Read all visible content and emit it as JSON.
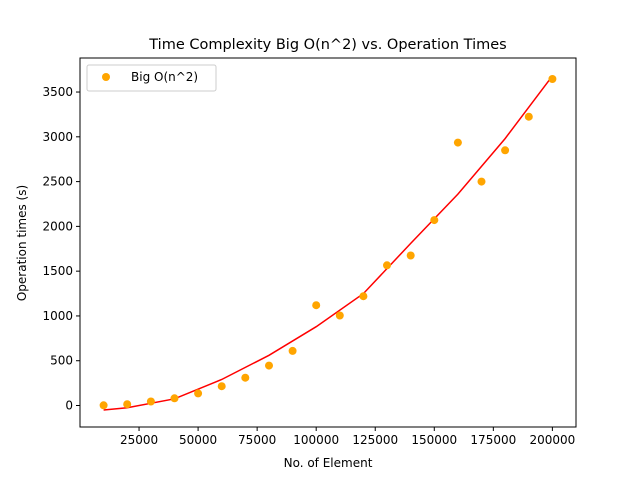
{
  "chart_data": {
    "type": "scatter",
    "title": "Time Complexity Big O(n^2) vs. Operation Times",
    "xlabel": "No. of Element",
    "ylabel": "Operation times (s)",
    "xlim": [
      0,
      210000
    ],
    "ylim": [
      -240,
      3880
    ],
    "x_ticks": [
      25000,
      50000,
      75000,
      100000,
      125000,
      150000,
      175000,
      200000
    ],
    "y_ticks": [
      0,
      500,
      1000,
      1500,
      2000,
      2500,
      3000,
      3500
    ],
    "grid": false,
    "legend_position": "top-left",
    "series": [
      {
        "name": "Big O(n^2)",
        "kind": "scatter",
        "color": "#FFA500",
        "x": [
          10000,
          20000,
          30000,
          40000,
          50000,
          60000,
          70000,
          80000,
          90000,
          100000,
          110000,
          120000,
          130000,
          140000,
          150000,
          160000,
          170000,
          180000,
          190000,
          200000
        ],
        "y": [
          2,
          15,
          45,
          80,
          135,
          215,
          310,
          445,
          610,
          1120,
          1005,
          1220,
          1565,
          1675,
          2070,
          2935,
          2500,
          2850,
          3225,
          3645
        ]
      },
      {
        "kind": "line",
        "color": "#FF0000",
        "x": [
          10000,
          20000,
          40000,
          60000,
          80000,
          100000,
          120000,
          140000,
          160000,
          180000,
          200000
        ],
        "y": [
          -50,
          -25,
          75,
          290,
          560,
          880,
          1250,
          1810,
          2360,
          2980,
          3680
        ]
      }
    ]
  }
}
